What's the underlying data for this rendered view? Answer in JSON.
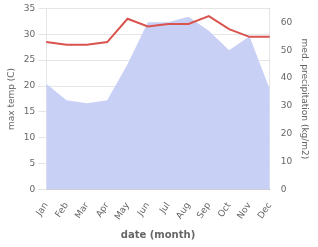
{
  "chart_data": {
    "type": "line",
    "xlabel": "date (month)",
    "ylabel": "max temp (C)",
    "y2label": "med. precipitation (kg/m2)",
    "categories": [
      "Jan",
      "Feb",
      "Mar",
      "Apr",
      "May",
      "Jun",
      "Jul",
      "Aug",
      "Sep",
      "Oct",
      "Nov",
      "Dec"
    ],
    "series": [
      {
        "type": "area",
        "axis": "y2",
        "color": "#c8d0f5",
        "values": [
          38,
          32,
          31,
          32,
          45,
          60,
          60,
          62,
          57,
          50,
          55,
          36
        ]
      },
      {
        "type": "line",
        "color": "#d9534f",
        "values": [
          28.5,
          28.0,
          28.0,
          28.5,
          33.0,
          31.5,
          32.0,
          32.0,
          33.5,
          31.0,
          29.5,
          29.5
        ]
      }
    ],
    "ylim": [
      0,
      35
    ],
    "yticks": [
      0,
      5,
      10,
      15,
      20,
      25,
      30,
      35
    ],
    "y2lim": [
      0,
      65
    ],
    "y2ticks": [
      0,
      10,
      20,
      30,
      40,
      50,
      60
    ],
    "grid": true
  }
}
